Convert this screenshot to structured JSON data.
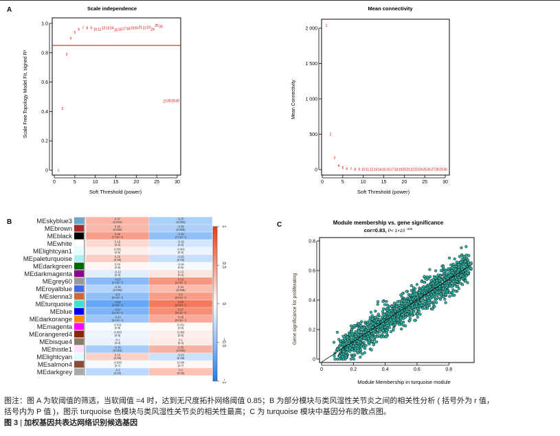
{
  "panels": {
    "A": "A",
    "B": "B",
    "C": "C"
  },
  "chart_data": [
    {
      "id": "scale-independence",
      "type": "scatter",
      "title": "Scale independence",
      "xlabel": "Soft Threshold (power)",
      "ylabel": "Scale Free Topology Model Fit, signed R²",
      "xlim": [
        0,
        30
      ],
      "ylim": [
        0,
        1.0
      ],
      "xticks": [
        "0",
        "5",
        "10",
        "15",
        "20",
        "25",
        "30"
      ],
      "yticks": [
        "0",
        "0.2",
        "0.4",
        "0.6",
        "0.8",
        "1.0"
      ],
      "threshold_line": 0.85,
      "threshold_color": "#e00000",
      "label_color": "#e00000",
      "points": [
        {
          "x": 1,
          "y": 0.0
        },
        {
          "x": 2,
          "y": 0.42
        },
        {
          "x": 3,
          "y": 0.79
        },
        {
          "x": 4,
          "y": 0.9
        },
        {
          "x": 5,
          "y": 0.94
        },
        {
          "x": 6,
          "y": 0.96
        },
        {
          "x": 7,
          "y": 0.97
        },
        {
          "x": 8,
          "y": 0.97
        },
        {
          "x": 9,
          "y": 0.97
        },
        {
          "x": 10,
          "y": 0.96
        },
        {
          "x": 11,
          "y": 0.96
        },
        {
          "x": 12,
          "y": 0.97
        },
        {
          "x": 13,
          "y": 0.97
        },
        {
          "x": 14,
          "y": 0.97
        },
        {
          "x": 15,
          "y": 0.955
        },
        {
          "x": 16,
          "y": 0.96
        },
        {
          "x": 17,
          "y": 0.965
        },
        {
          "x": 18,
          "y": 0.965
        },
        {
          "x": 19,
          "y": 0.97
        },
        {
          "x": 20,
          "y": 0.97
        },
        {
          "x": 21,
          "y": 0.975
        },
        {
          "x": 22,
          "y": 0.97
        },
        {
          "x": 23,
          "y": 0.975
        },
        {
          "x": 24,
          "y": 0.96
        },
        {
          "x": 25,
          "y": 0.985
        },
        {
          "x": 26,
          "y": 0.98
        },
        {
          "x": 27,
          "y": 0.47
        },
        {
          "x": 28,
          "y": 0.475
        },
        {
          "x": 29,
          "y": 0.475
        },
        {
          "x": 30,
          "y": 0.475
        }
      ]
    },
    {
      "id": "mean-connectivity",
      "type": "scatter",
      "title": "Mean connectivity",
      "xlabel": "Soft Threshold (power)",
      "ylabel": "Mean Connectivity",
      "xlim": [
        0,
        30
      ],
      "ylim": [
        0,
        2000
      ],
      "xticks": [
        "0",
        "5",
        "10",
        "15",
        "20",
        "25",
        "30"
      ],
      "yticks": [
        "0",
        "500",
        "1 000",
        "1 500",
        "2 000"
      ],
      "label_color": "#e00000",
      "points": [
        {
          "x": 1,
          "y": 2040
        },
        {
          "x": 2,
          "y": 500
        },
        {
          "x": 3,
          "y": 170
        },
        {
          "x": 4,
          "y": 60
        },
        {
          "x": 5,
          "y": 30
        },
        {
          "x": 6,
          "y": 15
        },
        {
          "x": 7,
          "y": 10
        },
        {
          "x": 8,
          "y": 5
        },
        {
          "x": 9,
          "y": 4
        },
        {
          "x": 10,
          "y": 3
        },
        {
          "x": 11,
          "y": 3
        },
        {
          "x": 12,
          "y": 3
        },
        {
          "x": 13,
          "y": 3
        },
        {
          "x": 14,
          "y": 3
        },
        {
          "x": 15,
          "y": 3
        },
        {
          "x": 16,
          "y": 3
        },
        {
          "x": 17,
          "y": 3
        },
        {
          "x": 18,
          "y": 3
        },
        {
          "x": 19,
          "y": 3
        },
        {
          "x": 20,
          "y": 3
        },
        {
          "x": 21,
          "y": 3
        },
        {
          "x": 22,
          "y": 3
        },
        {
          "x": 23,
          "y": 3
        },
        {
          "x": 24,
          "y": 3
        },
        {
          "x": 25,
          "y": 3
        },
        {
          "x": 26,
          "y": 3
        },
        {
          "x": 27,
          "y": 3
        },
        {
          "x": 28,
          "y": 3
        },
        {
          "x": 29,
          "y": 3
        },
        {
          "x": 30,
          "y": 3
        }
      ]
    },
    {
      "id": "module-trait-heatmap",
      "type": "heatmap",
      "color_scale": {
        "min": -1,
        "max": 1,
        "low": "#1e7df0",
        "mid": "#ffffff",
        "high": "#f03a10"
      },
      "colorbar_ticks": [
        "1",
        "0.5",
        "0",
        "-0.5",
        "-1"
      ],
      "columns": 2,
      "rows": [
        {
          "name": "MEskyblue3",
          "color": "#6ca6cd",
          "values": [
            0.37,
            -0.37
          ],
          "labels": [
            "0.37\n(0.004)",
            "-0.37\n(0.004)"
          ]
        },
        {
          "name": "MEbrown",
          "color": "#a52a2a",
          "values": [
            0.36,
            -0.36
          ],
          "labels": [
            "0.36\n(0.005)",
            "-0.36\n(0.005)"
          ]
        },
        {
          "name": "MEblack",
          "color": "#000000",
          "values": [
            0.49,
            -0.49
          ],
          "labels": [
            "0.49\n(7×10⁻⁵)",
            "-0.49\n(7×10⁻⁵)"
          ]
        },
        {
          "name": "MEwhite",
          "color": "#ffffff",
          "values": [
            0.19,
            -0.19
          ],
          "labels": [
            "0.19\n(0.2)",
            "-0.19\n(0.2)"
          ]
        },
        {
          "name": "MElightcyan1",
          "color": "#e0ffff",
          "values": [
            0.081,
            -0.081
          ],
          "labels": [
            "0.081\n(0.5)",
            "-0.081\n(0.5)"
          ]
        },
        {
          "name": "MEpaleturquoise",
          "color": "#afeeee",
          "values": [
            0.25,
            -0.25
          ],
          "labels": [
            "0.25\n(0.06)",
            "-0.25\n(0.06)"
          ]
        },
        {
          "name": "MEdarkgreen",
          "color": "#006400",
          "values": [
            0.04,
            -0.04
          ],
          "labels": [
            "0.04\n(0.8)",
            "-0.04\n(0.8)"
          ]
        },
        {
          "name": "MEdarkmagenta",
          "color": "#8b008b",
          "values": [
            -0.13,
            0.13
          ],
          "labels": [
            "-0.13\n(0.3)",
            "0.13\n(0.3)"
          ]
        },
        {
          "name": "MEgrey60",
          "color": "#999999",
          "values": [
            -0.53,
            0.53
          ],
          "labels": [
            "-0.53\n(1×10⁻⁵)",
            "0.53\n(1×10⁻⁵)"
          ]
        },
        {
          "name": "MEroyalblue",
          "color": "#4169e1",
          "values": [
            -0.34,
            0.34
          ],
          "labels": [
            "-0.34\n(0.008)",
            "0.34\n(0.008)"
          ]
        },
        {
          "name": "MEsienna3",
          "color": "#cd6839",
          "values": [
            -0.5,
            0.5
          ],
          "labels": [
            "-0.5\n(5×10⁻⁵)",
            "0.5\n(5×10⁻⁵)"
          ]
        },
        {
          "name": "MEturquoise",
          "color": "#40e0d0",
          "values": [
            -0.68,
            0.68
          ],
          "labels": [
            "-0.68\n(2×10⁻⁹)",
            "0.68\n(2×10⁻⁹)"
          ]
        },
        {
          "name": "MEblue",
          "color": "#0000ff",
          "values": [
            -0.57,
            0.57
          ],
          "labels": [
            "-0.57\n(5×10⁻⁶)",
            "0.57\n(5×10⁻⁶)"
          ]
        },
        {
          "name": "MEdarkorange",
          "color": "#ff8c00",
          "values": [
            -0.43,
            0.43
          ],
          "labels": [
            "-0.43\n(6×10⁻⁴)",
            "0.43\n(6×10⁻⁴)"
          ]
        },
        {
          "name": "MEmagenta",
          "color": "#ff00ff",
          "values": [
            -0.031,
            0.031
          ],
          "labels": [
            "-0.031\n(0.8)",
            "0.031\n(0.8)"
          ]
        },
        {
          "name": "MEorangered4",
          "color": "#8b2500",
          "values": [
            -0.083,
            0.083
          ],
          "labels": [
            "-0.083\n(0.5)",
            "0.083\n(0.5)"
          ]
        },
        {
          "name": "MEbisque4",
          "color": "#8b7d6b",
          "values": [
            -0.1,
            0.1
          ],
          "labels": [
            "-0.1\n(0.4)",
            "0.1\n(0.4)"
          ]
        },
        {
          "name": "MEthistle1",
          "color": "#ffe1ff",
          "values": [
            -0.39,
            0.39
          ],
          "labels": [
            "-0.39\n(0.003)",
            "0.39\n(0.003)"
          ]
        },
        {
          "name": "MElightcyan",
          "color": "#e0ffff",
          "values": [
            0.23,
            -0.23
          ],
          "labels": [
            "0.23\n(0.08)",
            "-0.23\n(0.08)"
          ]
        },
        {
          "name": "MEsalmon4",
          "color": "#8b4c39",
          "values": [
            -0.045,
            0.045
          ],
          "labels": [
            "-0.045\n(0.7)",
            "0.045\n(0.7)"
          ]
        },
        {
          "name": "MEdarkgrey",
          "color": "#a9a9a9",
          "values": [
            -0.3,
            0.3
          ],
          "labels": [
            "-0.3\n(0.02)",
            "0.3\n(0.02)"
          ]
        }
      ]
    },
    {
      "id": "module-membership-scatter",
      "type": "scatter",
      "title": "Module membership vs. gene significance",
      "subtitle_cor": "cor=0.83,",
      "subtitle_p": "P< 1×10",
      "subtitle_p_exp": "-200",
      "xlabel": "Module Membership in turquoise module",
      "ylabel": "Gene significance for proliferating",
      "xlim": [
        0,
        0.95
      ],
      "ylim": [
        0,
        0.8
      ],
      "xticks": [
        "0",
        "0.2",
        "0.4",
        "0.6",
        "0.8"
      ],
      "yticks": [
        "0",
        "0.2",
        "0.4",
        "0.6",
        "0.8"
      ],
      "point_fill": "#2fb5a6",
      "point_stroke": "#111111",
      "fit_line": {
        "slope": 0.7,
        "intercept": -0.02
      },
      "n_points_approx": 2500,
      "x_range": [
        0.02,
        0.94
      ],
      "y_range": [
        0.0,
        0.8
      ]
    }
  ],
  "caption": {
    "line1": "图注：图 A 为软阈值的筛选，当软阈值 =4 时，达到无尺度拓扑网络阈值 0.85；B 为部分模块与类风湿性关节炎之间的相关性分析 ( 括号外为 r 值，",
    "line2": "括号内为 P 值 )，图示 turquoise 色模块与类风湿性关节炎的相关性最高；C 为 turquoise 模块中基因分布的散点图。",
    "figure_label": "图 3",
    "figure_sep": " | ",
    "figure_title": "加权基因共表达网络识别候选基因"
  }
}
